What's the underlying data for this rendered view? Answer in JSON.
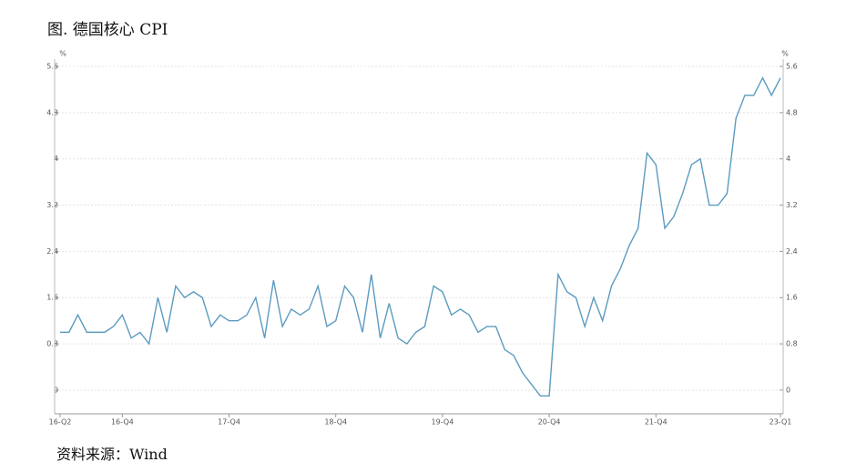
{
  "chart_data": {
    "type": "line",
    "title": "图. 德国核心 CPI",
    "source": "资料来源：Wind",
    "y_label": "%",
    "y2_label": "%",
    "categories": [
      "16-Q2",
      null,
      null,
      null,
      null,
      null,
      null,
      "16-Q4",
      null,
      null,
      null,
      null,
      null,
      null,
      null,
      null,
      null,
      null,
      null,
      "17-Q4",
      null,
      null,
      null,
      null,
      null,
      null,
      null,
      null,
      null,
      null,
      null,
      "18-Q4",
      null,
      null,
      null,
      null,
      null,
      null,
      null,
      null,
      null,
      null,
      null,
      "19-Q4",
      null,
      null,
      null,
      null,
      null,
      null,
      null,
      null,
      null,
      null,
      null,
      "20-Q4",
      null,
      null,
      null,
      null,
      null,
      null,
      null,
      null,
      null,
      null,
      null,
      "21-Q4",
      null,
      null,
      null,
      null,
      null,
      null,
      null,
      null,
      null,
      null,
      null,
      null,
      null,
      "23-Q1"
    ],
    "series": [
      {
        "name": "德国核心CPI",
        "color": "#5b9bbf",
        "values": [
          1.0,
          1.0,
          1.3,
          1.0,
          1.0,
          1.0,
          1.1,
          1.3,
          0.9,
          1.0,
          0.8,
          1.6,
          1.0,
          1.8,
          1.6,
          1.7,
          1.6,
          1.1,
          1.3,
          1.2,
          1.2,
          1.3,
          1.6,
          0.9,
          1.9,
          1.1,
          1.4,
          1.3,
          1.4,
          1.8,
          1.1,
          1.2,
          1.8,
          1.6,
          1.0,
          2.0,
          0.9,
          1.5,
          0.9,
          0.8,
          1.0,
          1.1,
          1.8,
          1.7,
          1.3,
          1.4,
          1.3,
          1.0,
          1.1,
          1.1,
          0.7,
          0.6,
          0.3,
          0.1,
          -0.1,
          -0.1,
          2.0,
          1.7,
          1.6,
          1.1,
          1.6,
          1.2,
          1.8,
          2.1,
          2.5,
          2.8,
          4.1,
          3.9,
          2.8,
          3.0,
          3.4,
          3.9,
          4.0,
          3.2,
          3.2,
          3.4,
          4.7,
          5.1,
          5.1,
          5.4,
          5.1,
          5.4
        ]
      }
    ],
    "ylim": [
      -0.41,
      5.6
    ],
    "yticks": [
      0,
      0.8,
      1.6,
      2.4,
      3.2,
      4,
      4.8,
      5.6
    ],
    "y2lim": [
      -0.41,
      5.6
    ],
    "y2ticks": [
      0,
      0.8,
      1.6,
      2.4,
      3.2,
      4,
      4.8,
      5.6
    ],
    "grid": true
  }
}
